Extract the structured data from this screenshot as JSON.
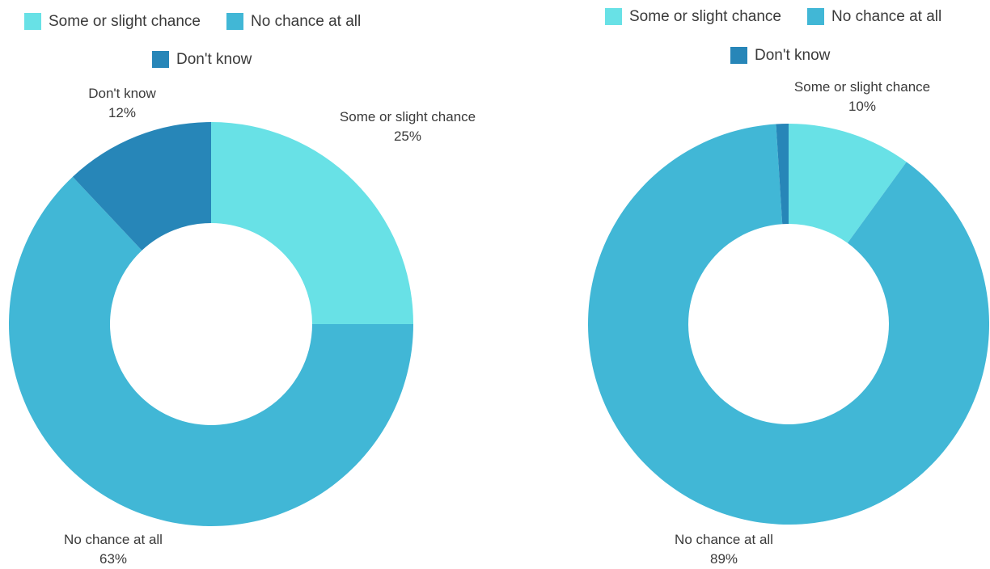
{
  "colors": {
    "some_or_slight_chance": "#68e1e6",
    "no_chance_at_all": "#41b7d6",
    "dont_know": "#2786b8"
  },
  "chart_data": [
    {
      "type": "pie",
      "donut": true,
      "legend": [
        "Some or slight chance",
        "No chance at all",
        "Don't know"
      ],
      "legend_position": "top",
      "slices": [
        {
          "label": "Some or slight chance",
          "value": 25,
          "value_label": "25%"
        },
        {
          "label": "No chance at all",
          "value": 63,
          "value_label": "63%"
        },
        {
          "label": "Don't know",
          "value": 12,
          "value_label": "12%"
        }
      ]
    },
    {
      "type": "pie",
      "donut": true,
      "legend": [
        "Some or slight chance",
        "No chance at all",
        "Don't know"
      ],
      "legend_position": "top",
      "slices": [
        {
          "label": "Some or slight chance",
          "value": 10,
          "value_label": "10%"
        },
        {
          "label": "No chance at all",
          "value": 89,
          "value_label": "89%"
        },
        {
          "label": "Don't know",
          "value": 1
        }
      ]
    }
  ]
}
